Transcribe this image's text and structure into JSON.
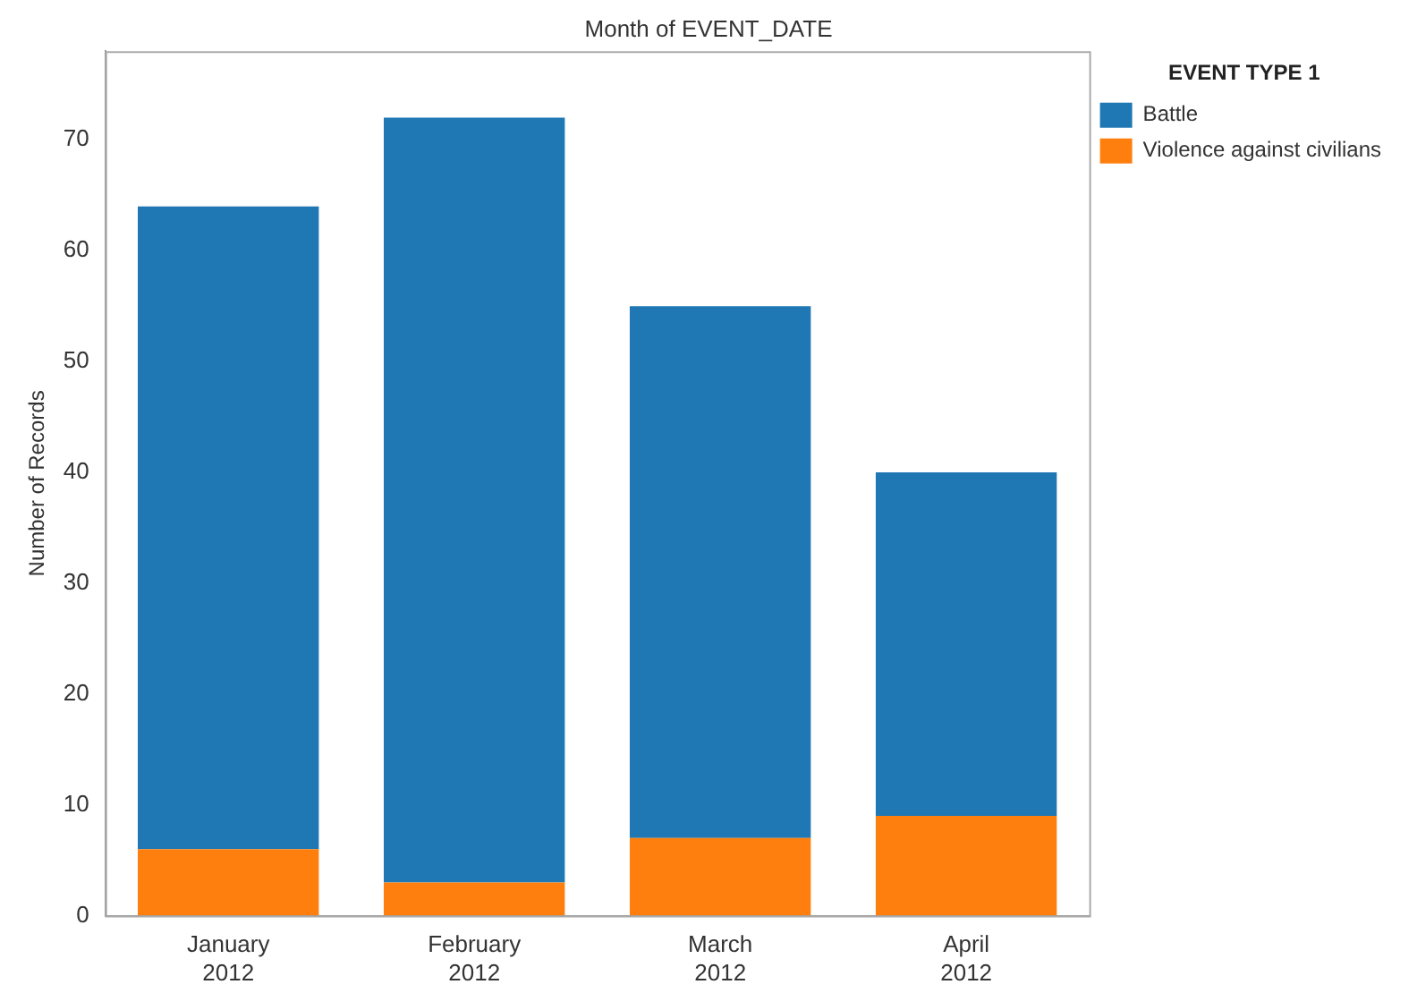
{
  "chart_data": {
    "type": "bar",
    "title": "Month of EVENT_DATE",
    "ylabel": "Number of Records",
    "legend_title": "EVENT TYPE 1",
    "categories": [
      "January 2012",
      "February 2012",
      "March 2012",
      "April 2012"
    ],
    "series": [
      {
        "name": "Violence against civilians",
        "color": "#ff7f0e",
        "values": [
          6,
          3,
          7,
          9
        ]
      },
      {
        "name": "Battle",
        "color": "#1f77b4",
        "values": [
          58,
          69,
          48,
          31
        ]
      }
    ],
    "stacked": true,
    "ylim": [
      0,
      78
    ],
    "yticks": [
      0,
      10,
      20,
      30,
      40,
      50,
      60,
      70
    ],
    "grid": false,
    "legend": "top right"
  }
}
